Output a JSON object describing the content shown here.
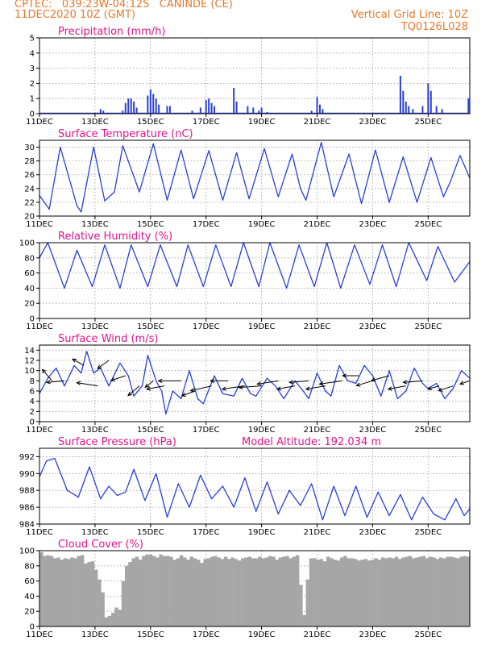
{
  "header": {
    "line1_left": "CPTEC:   039:23W-04:12S   CANINDE (CE)",
    "line2_left": "11DEC2020 10Z (GMT)",
    "line2_right": "Vertical Grid Line: 10Z",
    "line3_right": "TQ0126L028"
  },
  "colors": {
    "header": "#e8782a",
    "title": "#e0148c",
    "series": "#2a3fd8",
    "cloud": "#a6a6a6"
  },
  "x_axis": {
    "labels": [
      "11DEC",
      "13DEC",
      "15DEC",
      "17DEC",
      "19DEC",
      "21DEC",
      "23DEC",
      "25DEC"
    ],
    "label_days": [
      0,
      2,
      4,
      6,
      8,
      10,
      12,
      14
    ],
    "range_days": [
      0,
      15.5
    ],
    "grid_on": true
  },
  "chart_data": [
    {
      "id": "precip",
      "type": "bar",
      "title": "Precipitation  (mm/h)",
      "ylim": [
        0,
        5
      ],
      "yticks": [
        0,
        1,
        2,
        3,
        4,
        5
      ],
      "bars": [
        [
          2.0,
          0.05
        ],
        [
          2.1,
          0.05
        ],
        [
          2.2,
          0.3
        ],
        [
          2.3,
          0.2
        ],
        [
          3.0,
          0.2
        ],
        [
          3.1,
          0.7
        ],
        [
          3.2,
          1.0
        ],
        [
          3.3,
          1.0
        ],
        [
          3.4,
          0.8
        ],
        [
          3.5,
          0.4
        ],
        [
          3.9,
          1.2
        ],
        [
          4.0,
          1.6
        ],
        [
          4.1,
          1.3
        ],
        [
          4.2,
          1.0
        ],
        [
          4.3,
          0.6
        ],
        [
          4.6,
          0.5
        ],
        [
          4.7,
          0.5
        ],
        [
          5.5,
          0.2
        ],
        [
          5.8,
          0.4
        ],
        [
          6.0,
          0.9
        ],
        [
          6.1,
          1.0
        ],
        [
          6.2,
          0.7
        ],
        [
          6.3,
          0.5
        ],
        [
          7.0,
          1.7
        ],
        [
          7.1,
          0.8
        ],
        [
          7.5,
          0.5
        ],
        [
          7.7,
          0.4
        ],
        [
          7.9,
          0.2
        ],
        [
          8.0,
          0.4
        ],
        [
          8.2,
          0.1
        ],
        [
          9.8,
          0.2
        ],
        [
          10.0,
          1.1
        ],
        [
          10.1,
          0.6
        ],
        [
          10.2,
          0.3
        ],
        [
          13.0,
          2.5
        ],
        [
          13.1,
          1.5
        ],
        [
          13.2,
          0.8
        ],
        [
          13.3,
          0.5
        ],
        [
          13.45,
          0.3
        ],
        [
          13.8,
          0.5
        ],
        [
          14.0,
          2.0
        ],
        [
          14.1,
          1.5
        ],
        [
          14.3,
          0.5
        ],
        [
          14.5,
          0.3
        ],
        [
          15.45,
          1.0
        ]
      ]
    },
    {
      "id": "temp",
      "type": "line",
      "title": "Surface Temperature (nC)",
      "ylim": [
        20,
        31
      ],
      "yticks": [
        20,
        22,
        24,
        26,
        28,
        30
      ],
      "points": [
        [
          0,
          23.0
        ],
        [
          0.35,
          21.0
        ],
        [
          0.75,
          30.0
        ],
        [
          1.35,
          21.5
        ],
        [
          1.5,
          20.6
        ],
        [
          1.95,
          30.0
        ],
        [
          2.35,
          22.2
        ],
        [
          2.7,
          23.5
        ],
        [
          3.0,
          30.2
        ],
        [
          3.6,
          23.5
        ],
        [
          4.1,
          30.5
        ],
        [
          4.6,
          22.3
        ],
        [
          5.1,
          29.6
        ],
        [
          5.55,
          22.5
        ],
        [
          6.1,
          29.5
        ],
        [
          6.6,
          22.3
        ],
        [
          7.1,
          29.2
        ],
        [
          7.55,
          22.5
        ],
        [
          8.1,
          29.8
        ],
        [
          8.6,
          22.8
        ],
        [
          9.1,
          29.0
        ],
        [
          9.4,
          24.0
        ],
        [
          9.6,
          22.3
        ],
        [
          10.15,
          30.7
        ],
        [
          10.6,
          22.8
        ],
        [
          11.15,
          29.0
        ],
        [
          11.6,
          21.8
        ],
        [
          12.1,
          29.6
        ],
        [
          12.6,
          22.0
        ],
        [
          13.1,
          28.6
        ],
        [
          13.6,
          22.0
        ],
        [
          14.1,
          28.5
        ],
        [
          14.55,
          22.8
        ],
        [
          14.8,
          25.0
        ],
        [
          15.15,
          28.8
        ],
        [
          15.5,
          25.5
        ]
      ]
    },
    {
      "id": "rh",
      "type": "line",
      "title": "Relative Humidity (%)",
      "ylim": [
        0,
        100
      ],
      "yticks": [
        0,
        20,
        40,
        60,
        80,
        100
      ],
      "points": [
        [
          0,
          80
        ],
        [
          0.3,
          100
        ],
        [
          0.9,
          40
        ],
        [
          1.35,
          90
        ],
        [
          1.9,
          42
        ],
        [
          2.35,
          97
        ],
        [
          2.9,
          40
        ],
        [
          3.3,
          97
        ],
        [
          3.9,
          42
        ],
        [
          4.35,
          97
        ],
        [
          4.95,
          42
        ],
        [
          5.35,
          97
        ],
        [
          5.9,
          42
        ],
        [
          6.35,
          97
        ],
        [
          6.9,
          42
        ],
        [
          7.35,
          100
        ],
        [
          7.9,
          42
        ],
        [
          8.3,
          100
        ],
        [
          8.9,
          40
        ],
        [
          9.35,
          97
        ],
        [
          9.9,
          42
        ],
        [
          10.35,
          100
        ],
        [
          10.85,
          40
        ],
        [
          11.35,
          97
        ],
        [
          11.9,
          45
        ],
        [
          12.35,
          97
        ],
        [
          12.85,
          42
        ],
        [
          13.3,
          100
        ],
        [
          13.95,
          50
        ],
        [
          14.35,
          95
        ],
        [
          14.95,
          48
        ],
        [
          15.5,
          75
        ]
      ]
    },
    {
      "id": "wind",
      "type": "line",
      "title": "Surface Wind (m/s)",
      "ylim": [
        0,
        15
      ],
      "yticks": [
        0,
        2,
        4,
        6,
        8,
        10,
        12,
        14
      ],
      "points": [
        [
          0,
          5.5
        ],
        [
          0.3,
          8.5
        ],
        [
          0.6,
          10.5
        ],
        [
          0.9,
          7.0
        ],
        [
          1.25,
          11.0
        ],
        [
          1.5,
          9.5
        ],
        [
          1.7,
          13.8
        ],
        [
          1.95,
          9.5
        ],
        [
          2.2,
          10.5
        ],
        [
          2.5,
          7.0
        ],
        [
          2.9,
          11.5
        ],
        [
          3.2,
          9.0
        ],
        [
          3.4,
          5.0
        ],
        [
          3.7,
          7.0
        ],
        [
          3.9,
          13.0
        ],
        [
          4.2,
          8.0
        ],
        [
          4.4,
          6.0
        ],
        [
          4.55,
          1.5
        ],
        [
          4.8,
          6.0
        ],
        [
          5.1,
          4.5
        ],
        [
          5.4,
          10.0
        ],
        [
          5.7,
          4.5
        ],
        [
          5.9,
          3.5
        ],
        [
          6.3,
          9.0
        ],
        [
          6.6,
          5.5
        ],
        [
          7.0,
          5.0
        ],
        [
          7.3,
          8.5
        ],
        [
          7.6,
          5.5
        ],
        [
          7.8,
          5.0
        ],
        [
          8.2,
          8.5
        ],
        [
          8.5,
          7.0
        ],
        [
          8.8,
          4.5
        ],
        [
          9.2,
          8.0
        ],
        [
          9.5,
          6.0
        ],
        [
          9.7,
          4.5
        ],
        [
          10.0,
          9.5
        ],
        [
          10.3,
          6.0
        ],
        [
          10.5,
          5.0
        ],
        [
          10.8,
          11.0
        ],
        [
          11.1,
          8.0
        ],
        [
          11.4,
          7.5
        ],
        [
          11.7,
          11.0
        ],
        [
          12.0,
          9.0
        ],
        [
          12.3,
          5.0
        ],
        [
          12.6,
          10.0
        ],
        [
          12.9,
          4.5
        ],
        [
          13.2,
          6.0
        ],
        [
          13.5,
          10.5
        ],
        [
          13.8,
          7.5
        ],
        [
          14.0,
          6.5
        ],
        [
          14.3,
          7.5
        ],
        [
          14.6,
          4.5
        ],
        [
          14.9,
          6.5
        ],
        [
          15.2,
          10.0
        ],
        [
          15.5,
          8.5
        ]
      ],
      "arrows": [
        [
          0.45,
          8,
          -12,
          -14
        ],
        [
          0.9,
          8,
          -22,
          2
        ],
        [
          1.6,
          11,
          -14,
          -8
        ],
        [
          2.1,
          7,
          -26,
          -4
        ],
        [
          2.5,
          12,
          -14,
          10
        ],
        [
          3.1,
          9,
          -18,
          6
        ],
        [
          3.6,
          7,
          -14,
          12
        ],
        [
          4.1,
          8,
          -10,
          8
        ],
        [
          4.5,
          7,
          -22,
          4
        ],
        [
          5.1,
          8,
          -28,
          0
        ],
        [
          5.6,
          6,
          -16,
          6
        ],
        [
          6.2,
          7,
          -26,
          6
        ],
        [
          6.8,
          8,
          -22,
          0
        ],
        [
          7.4,
          7,
          -28,
          4
        ],
        [
          8.0,
          7,
          -28,
          2
        ],
        [
          8.6,
          8,
          -26,
          4
        ],
        [
          9.2,
          7,
          -22,
          4
        ],
        [
          9.7,
          8,
          -24,
          2
        ],
        [
          10.3,
          7,
          -24,
          4
        ],
        [
          10.9,
          8,
          -28,
          4
        ],
        [
          11.5,
          9,
          -20,
          0
        ],
        [
          12.0,
          8,
          -20,
          6
        ],
        [
          12.6,
          9,
          -22,
          6
        ],
        [
          13.2,
          7,
          -22,
          4
        ],
        [
          13.8,
          8,
          -24,
          2
        ],
        [
          14.4,
          7,
          -14,
          4
        ],
        [
          14.9,
          7,
          -18,
          6
        ],
        [
          15.5,
          8,
          -12,
          4
        ]
      ]
    },
    {
      "id": "press",
      "type": "line",
      "title": "Surface Pressure (hPa)",
      "subtitle": "Model Altitude: 192.034 m",
      "ylim": [
        984,
        993
      ],
      "yticks": [
        984,
        986,
        988,
        990,
        992
      ],
      "points": [
        [
          0,
          989.6
        ],
        [
          0.25,
          991.5
        ],
        [
          0.55,
          991.8
        ],
        [
          1.0,
          988.0
        ],
        [
          1.4,
          987.2
        ],
        [
          1.8,
          990.8
        ],
        [
          2.2,
          987.0
        ],
        [
          2.5,
          988.5
        ],
        [
          2.8,
          987.4
        ],
        [
          3.1,
          987.8
        ],
        [
          3.4,
          990.5
        ],
        [
          3.8,
          986.8
        ],
        [
          4.2,
          990.0
        ],
        [
          4.6,
          984.8
        ],
        [
          5.0,
          988.8
        ],
        [
          5.4,
          986.0
        ],
        [
          5.8,
          989.8
        ],
        [
          6.2,
          987.0
        ],
        [
          6.6,
          988.5
        ],
        [
          7.0,
          986.0
        ],
        [
          7.4,
          989.5
        ],
        [
          7.8,
          985.5
        ],
        [
          8.2,
          989.0
        ],
        [
          8.6,
          985.2
        ],
        [
          9.0,
          988.0
        ],
        [
          9.4,
          986.2
        ],
        [
          9.8,
          988.8
        ],
        [
          10.2,
          984.5
        ],
        [
          10.6,
          988.5
        ],
        [
          11.0,
          985.0
        ],
        [
          11.4,
          988.5
        ],
        [
          11.8,
          984.8
        ],
        [
          12.2,
          987.8
        ],
        [
          12.6,
          985.0
        ],
        [
          13.0,
          987.5
        ],
        [
          13.4,
          984.5
        ],
        [
          13.8,
          987.2
        ],
        [
          14.2,
          985.2
        ],
        [
          14.6,
          984.5
        ],
        [
          15.0,
          987.0
        ],
        [
          15.3,
          985.0
        ],
        [
          15.5,
          985.8
        ]
      ]
    },
    {
      "id": "cloud",
      "type": "bar",
      "title": "Cloud Cover (%)",
      "ylim": [
        0,
        100
      ],
      "yticks": [
        0,
        20,
        40,
        60,
        80,
        100
      ],
      "samples_per_day": 8,
      "values": [
        98,
        93,
        94,
        93,
        90,
        91,
        88,
        90,
        89,
        91,
        90,
        93,
        94,
        83,
        85,
        86,
        75,
        62,
        45,
        12,
        14,
        18,
        25,
        22,
        60,
        80,
        85,
        90,
        92,
        88,
        93,
        95,
        95,
        93,
        91,
        95,
        93,
        93,
        92,
        88,
        90,
        94,
        91,
        88,
        92,
        90,
        88,
        84,
        89,
        90,
        92,
        93,
        91,
        89,
        92,
        89,
        91,
        89,
        87,
        90,
        91,
        92,
        90,
        90,
        92,
        90,
        91,
        93,
        92,
        88,
        91,
        92,
        93,
        90,
        92,
        94,
        55,
        15,
        62,
        90,
        90,
        88,
        89,
        86,
        92,
        90,
        88,
        87,
        91,
        93,
        90,
        90,
        89,
        87,
        88,
        89,
        87,
        88,
        90,
        88,
        91,
        90,
        91,
        90,
        92,
        89,
        91,
        92,
        93,
        90,
        91,
        92,
        93,
        90,
        92,
        91,
        89,
        91,
        90,
        92,
        92,
        91,
        90,
        92,
        93,
        92
      ]
    }
  ]
}
